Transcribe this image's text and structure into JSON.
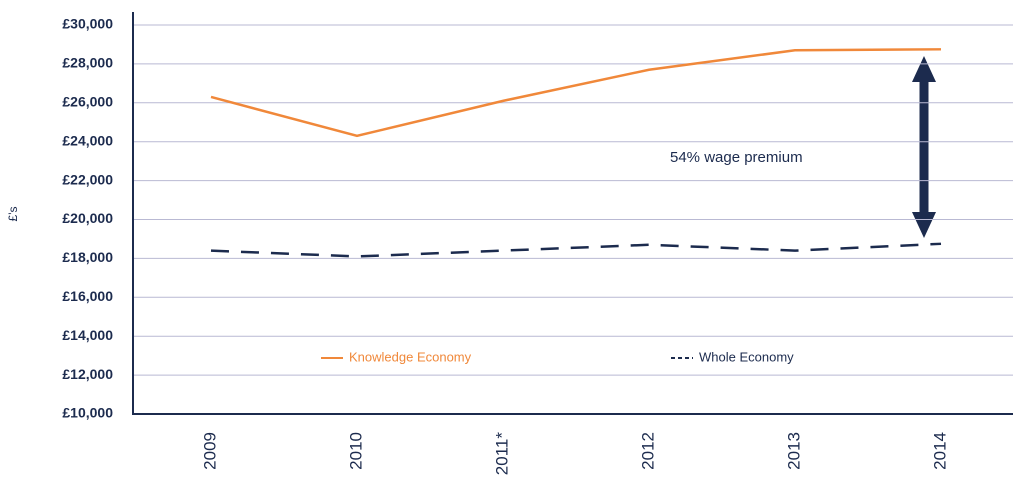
{
  "chart_data": {
    "type": "line",
    "y_label": "£'s",
    "annotation": "54% wage premium",
    "categories": [
      "2009",
      "2010",
      "2011*",
      "2012",
      "2013",
      "2014"
    ],
    "series": [
      {
        "name": "Knowledge Economy",
        "color": "#f0883a",
        "dash": "solid",
        "values": [
          26300,
          24300,
          26100,
          27700,
          28700,
          28750
        ]
      },
      {
        "name": "Whole Economy",
        "color": "#1c2b4e",
        "dash": "dashed",
        "values": [
          18400,
          18100,
          18400,
          18700,
          18400,
          18750
        ]
      }
    ],
    "ylim": [
      10000,
      30000
    ],
    "yticks": [
      {
        "value": 10000,
        "label": "£10,000"
      },
      {
        "value": 12000,
        "label": "£12,000"
      },
      {
        "value": 14000,
        "label": "£14,000"
      },
      {
        "value": 16000,
        "label": "£16,000"
      },
      {
        "value": 18000,
        "label": "£18,000"
      },
      {
        "value": 20000,
        "label": "£20,000"
      },
      {
        "value": 22000,
        "label": "£22,000"
      },
      {
        "value": 24000,
        "label": "£24,000"
      },
      {
        "value": 26000,
        "label": "£26,000"
      },
      {
        "value": 28000,
        "label": "£28,000"
      },
      {
        "value": 30000,
        "label": "£30,000"
      }
    ],
    "grid": true
  }
}
